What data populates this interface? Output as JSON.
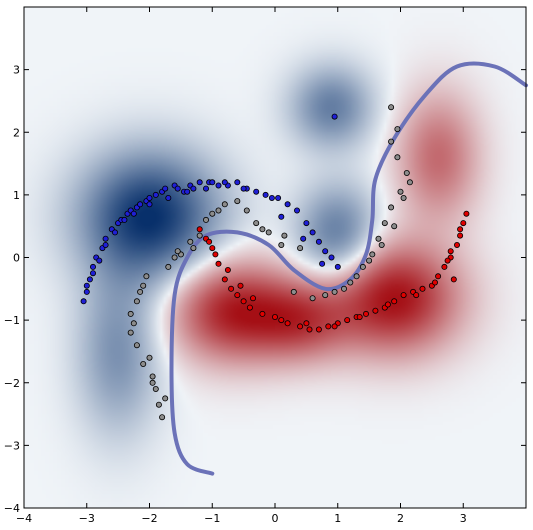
{
  "chart_data": {
    "type": "scatter",
    "title": "",
    "xlabel": "",
    "ylabel": "",
    "xlim": [
      -4,
      4
    ],
    "ylim": [
      -4,
      4
    ],
    "x_ticks": [
      -4,
      -3,
      -2,
      -1,
      0,
      1,
      2,
      3
    ],
    "y_ticks": [
      -4,
      -3,
      -2,
      -1,
      0,
      1,
      2,
      3
    ],
    "grid": false,
    "legend": "none",
    "background_heatmap": {
      "colormap": "RdBu_r",
      "colors": {
        "negative": "#08306b",
        "neutral": "#f0f4f8",
        "positive": "#a50f15"
      },
      "blue_peaks": [
        {
          "x": -2.0,
          "y": 0.65,
          "amp": 1.0,
          "sx": 0.75,
          "sy": 0.7
        },
        {
          "x": 1.0,
          "y": 0.35,
          "amp": 0.6,
          "sx": 0.45,
          "sy": 0.55
        },
        {
          "x": 0.9,
          "y": 2.4,
          "amp": 0.55,
          "sx": 0.45,
          "sy": 0.45
        },
        {
          "x": -2.5,
          "y": -1.5,
          "amp": 0.45,
          "sx": 0.45,
          "sy": 0.9
        }
      ],
      "red_peaks": [
        {
          "x": 1.9,
          "y": -0.65,
          "amp": 1.0,
          "sx": 0.7,
          "sy": 0.6
        },
        {
          "x": -0.7,
          "y": -0.85,
          "amp": 0.9,
          "sx": 0.65,
          "sy": 0.55
        },
        {
          "x": 0.4,
          "y": -1.0,
          "amp": 0.65,
          "sx": 0.55,
          "sy": 0.45
        },
        {
          "x": 2.6,
          "y": 1.6,
          "amp": 0.55,
          "sx": 0.45,
          "sy": 0.7
        }
      ]
    },
    "decision_boundary": {
      "color": "#6b72b8",
      "points": [
        [
          -1.0,
          -3.45
        ],
        [
          -1.4,
          -3.3
        ],
        [
          -1.6,
          -2.8
        ],
        [
          -1.65,
          -1.8
        ],
        [
          -1.6,
          -0.6
        ],
        [
          -1.4,
          0.0
        ],
        [
          -1.1,
          0.35
        ],
        [
          -0.6,
          0.4
        ],
        [
          -0.1,
          0.2
        ],
        [
          0.3,
          -0.2
        ],
        [
          0.8,
          -0.5
        ],
        [
          1.2,
          -0.35
        ],
        [
          1.45,
          0.05
        ],
        [
          1.55,
          0.6
        ],
        [
          1.6,
          1.25
        ],
        [
          1.9,
          1.9
        ],
        [
          2.4,
          2.6
        ],
        [
          2.9,
          3.05
        ],
        [
          3.5,
          3.05
        ],
        [
          4.0,
          2.75
        ]
      ]
    },
    "series": [
      {
        "name": "",
        "color": "#1f1fd6",
        "marker": "circle",
        "x": [
          -3.05,
          -3.0,
          -2.95,
          -2.9,
          -2.85,
          -2.75,
          -2.7,
          -2.6,
          -2.5,
          -2.45,
          -2.35,
          -2.3,
          -2.2,
          -2.15,
          -2.05,
          -2.0,
          -1.9,
          -1.8,
          -1.75,
          -1.6,
          -1.55,
          -1.45,
          -1.35,
          -1.3,
          -1.2,
          -1.05,
          -1.0,
          -0.9,
          -0.75,
          -0.6,
          -0.45,
          -0.3,
          -0.15,
          -0.05,
          0.05,
          0.2,
          0.35,
          0.5,
          0.6,
          0.7,
          0.8,
          0.9,
          1.0,
          -3.0,
          -2.9,
          -2.8,
          -2.7,
          -2.55,
          -2.4,
          -2.25,
          -2.0,
          -1.7,
          -1.4,
          -1.1,
          -0.8,
          -0.5,
          0.1,
          0.45,
          0.75,
          0.95
        ],
        "y": [
          -0.7,
          -0.55,
          -0.35,
          -0.15,
          0.0,
          0.15,
          0.3,
          0.45,
          0.55,
          0.6,
          0.7,
          0.75,
          0.8,
          0.85,
          0.9,
          0.95,
          1.0,
          1.05,
          1.1,
          1.15,
          1.1,
          1.05,
          1.15,
          1.1,
          1.2,
          1.2,
          1.2,
          1.15,
          1.15,
          1.2,
          1.1,
          1.05,
          1.0,
          0.95,
          0.95,
          0.85,
          0.75,
          0.55,
          0.4,
          0.25,
          0.1,
          0.0,
          -0.15,
          -0.45,
          -0.25,
          -0.05,
          0.2,
          0.4,
          0.6,
          0.7,
          0.85,
          0.95,
          1.05,
          1.1,
          1.2,
          1.1,
          0.65,
          0.3,
          -0.1,
          2.25
        ]
      },
      {
        "name": "",
        "color": "#8c8c8c",
        "marker": "circle",
        "x": [
          -2.3,
          -2.25,
          -2.3,
          -2.2,
          -2.15,
          -2.1,
          -2.05,
          -2.0,
          -1.95,
          -1.9,
          -1.85,
          -1.8,
          -1.7,
          -1.6,
          -1.5,
          -1.35,
          -1.2,
          -1.0,
          -0.8,
          -0.6,
          -0.45,
          -0.3,
          -0.1,
          0.1,
          0.3,
          0.6,
          0.95,
          1.2,
          1.4,
          1.55,
          1.65,
          1.75,
          1.85,
          2.0,
          2.1,
          1.95,
          1.85,
          -2.2,
          -2.1,
          -1.95,
          -1.75,
          -1.55,
          -1.3,
          -1.1,
          -0.9,
          -0.2,
          0.15,
          0.4,
          0.8,
          1.1,
          1.3,
          1.5,
          1.7,
          1.9,
          2.05,
          2.15,
          1.95,
          1.85
        ],
        "y": [
          -1.2,
          -1.05,
          -0.9,
          -0.7,
          -0.55,
          -0.45,
          -0.3,
          -1.6,
          -1.9,
          -2.1,
          -2.35,
          -2.55,
          -0.15,
          0.0,
          0.05,
          0.25,
          0.35,
          0.7,
          0.85,
          0.9,
          0.75,
          0.55,
          0.4,
          0.2,
          -0.55,
          -0.65,
          -0.55,
          -0.4,
          -0.15,
          0.05,
          0.3,
          0.55,
          0.8,
          1.05,
          1.35,
          1.6,
          1.85,
          -1.4,
          -1.7,
          -2.0,
          -2.25,
          0.1,
          0.15,
          0.6,
          0.75,
          0.45,
          0.35,
          0.15,
          -0.6,
          -0.5,
          -0.3,
          -0.05,
          0.2,
          0.5,
          0.95,
          1.2,
          2.05,
          2.4
        ]
      },
      {
        "name": "",
        "color": "#e00000",
        "marker": "circle",
        "x": [
          -1.2,
          -1.1,
          -1.0,
          -0.9,
          -0.8,
          -0.7,
          -0.6,
          -0.5,
          -0.4,
          -0.2,
          0.0,
          0.2,
          0.4,
          0.55,
          0.7,
          0.85,
          1.0,
          1.15,
          1.3,
          1.45,
          1.6,
          1.75,
          1.9,
          2.05,
          2.2,
          2.35,
          2.5,
          2.6,
          2.7,
          2.8,
          2.9,
          2.95,
          3.0,
          3.05,
          2.85,
          2.75,
          -1.05,
          -0.95,
          -0.75,
          -0.55,
          -0.35,
          0.1,
          0.5,
          0.95,
          1.35,
          1.8,
          2.25,
          2.55,
          2.8,
          2.95
        ],
        "y": [
          0.45,
          0.3,
          0.15,
          -0.1,
          -0.35,
          -0.5,
          -0.6,
          -0.7,
          -0.8,
          -0.9,
          -0.95,
          -1.05,
          -1.1,
          -1.15,
          -1.15,
          -1.1,
          -1.05,
          -1.0,
          -0.95,
          -0.9,
          -0.85,
          -0.8,
          -0.7,
          -0.6,
          -0.55,
          -0.5,
          -0.45,
          -0.3,
          -0.15,
          0.0,
          0.2,
          0.35,
          0.55,
          0.7,
          -0.35,
          -0.05,
          0.25,
          0.05,
          -0.2,
          -0.45,
          -0.65,
          -1.0,
          -1.05,
          -1.1,
          -0.95,
          -0.75,
          -0.6,
          -0.4,
          0.1,
          0.45
        ]
      }
    ]
  }
}
